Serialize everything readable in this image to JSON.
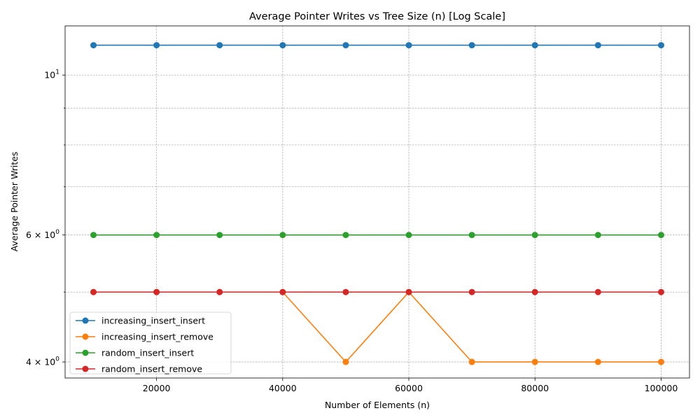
{
  "chart_data": {
    "type": "line",
    "title": "Average Pointer Writes vs Tree Size (n) [Log Scale]",
    "xlabel": "Number of Elements (n)",
    "ylabel": "Average Pointer Writes",
    "yscale": "log",
    "ylim": [
      3.8,
      11.7
    ],
    "xlim": [
      5500,
      104500
    ],
    "grid": true,
    "legend_position": "lower-left",
    "x": [
      10000,
      20000,
      30000,
      40000,
      50000,
      60000,
      70000,
      80000,
      90000,
      100000
    ],
    "x_ticks": [
      {
        "value": 20000,
        "label": "20000"
      },
      {
        "value": 40000,
        "label": "40000"
      },
      {
        "value": 60000,
        "label": "60000"
      },
      {
        "value": 80000,
        "label": "80000"
      },
      {
        "value": 100000,
        "label": "100000"
      }
    ],
    "y_major_ticks": [
      {
        "value": 10,
        "base": "10",
        "exp": "1"
      },
      {
        "value": 6,
        "base": "6 × 10",
        "exp": "0"
      },
      {
        "value": 4,
        "base": "4 × 10",
        "exp": "0"
      }
    ],
    "y_minor_ticks": [
      5,
      7,
      8,
      9
    ],
    "series": [
      {
        "name": "increasing_insert_insert",
        "color": "#1f77b4",
        "values": [
          11,
          11,
          11,
          11,
          11,
          11,
          11,
          11,
          11,
          11
        ]
      },
      {
        "name": "increasing_insert_remove",
        "color": "#ff7f0e",
        "values": [
          5,
          5,
          5,
          5,
          4,
          5,
          4,
          4,
          4,
          4
        ]
      },
      {
        "name": "random_insert_insert",
        "color": "#2ca02c",
        "values": [
          6,
          6,
          6,
          6,
          6,
          6,
          6,
          6,
          6,
          6
        ]
      },
      {
        "name": "random_insert_remove",
        "color": "#d62728",
        "values": [
          5,
          5,
          5,
          5,
          5,
          5,
          5,
          5,
          5,
          5
        ]
      }
    ]
  }
}
